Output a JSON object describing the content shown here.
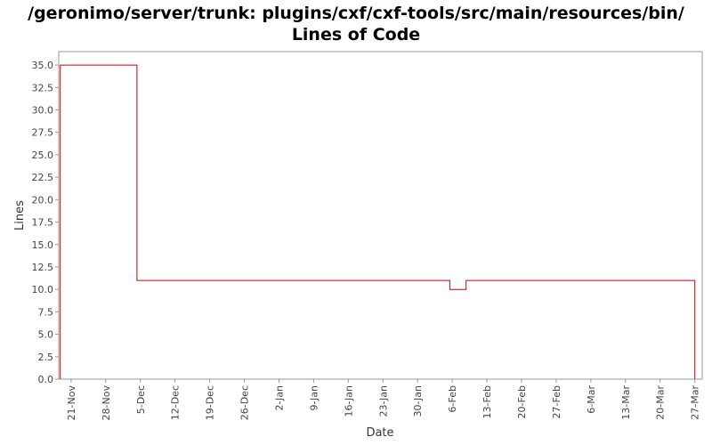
{
  "chart_data": {
    "type": "line",
    "title_line1": "/geronimo/server/trunk: plugins/cxf/cxf-tools/src/main/resources/bin/",
    "title_line2": "Lines of Code",
    "xlabel": "Date",
    "ylabel": "Lines",
    "x_tick_labels": [
      "21-Nov",
      "28-Nov",
      "5-Dec",
      "12-Dec",
      "19-Dec",
      "26-Dec",
      "2-Jan",
      "9-Jan",
      "16-Jan",
      "23-Jan",
      "30-Jan",
      "6-Feb",
      "13-Feb",
      "20-Feb",
      "27-Feb",
      "6-Mar",
      "13-Mar",
      "20-Mar",
      "27-Mar"
    ],
    "x_tick_days": [
      0,
      7,
      14,
      21,
      28,
      35,
      42,
      49,
      56,
      63,
      70,
      77,
      84,
      91,
      98,
      105,
      112,
      119,
      126
    ],
    "y_ticks": [
      0.0,
      2.5,
      5.0,
      7.5,
      10.0,
      12.5,
      15.0,
      17.5,
      20.0,
      22.5,
      25.0,
      27.5,
      30.0,
      32.5,
      35.0
    ],
    "ylim": [
      0,
      36.5
    ],
    "xlim_days": [
      -2.5,
      127.5
    ],
    "grid": false,
    "legend": "none",
    "line_color": "#cc0000",
    "step": true,
    "series": [
      {
        "points_days": [
          -2.2,
          -2.2,
          13.3,
          13.3,
          76.5,
          76.5,
          79.8,
          79.8,
          126.0,
          126.0
        ],
        "values": [
          0,
          35,
          35,
          11,
          11,
          10,
          10,
          11,
          11,
          0
        ]
      }
    ]
  }
}
